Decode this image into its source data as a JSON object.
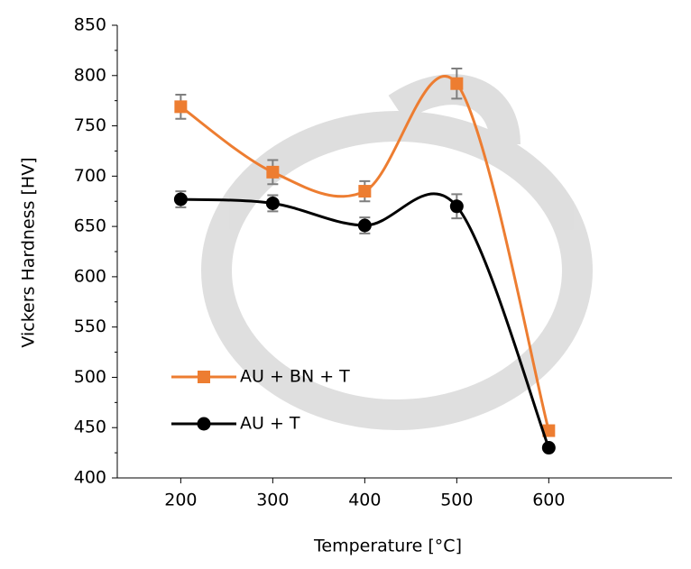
{
  "chart_data": {
    "type": "line",
    "smooth": true,
    "x_label": "Temperature [°C]",
    "y_label": "Vickers Hardness [HV]",
    "x": [
      200,
      300,
      400,
      500,
      600
    ],
    "xlim": [
      131,
      734
    ],
    "xticks": [
      200,
      300,
      400,
      500,
      600
    ],
    "ylim": [
      400,
      850
    ],
    "yticks": [
      400,
      450,
      500,
      550,
      600,
      650,
      700,
      750,
      800,
      850
    ],
    "minor_yticks": true,
    "grid": false,
    "legend": "lower left",
    "error_color": "#7f7f7f",
    "series": [
      {
        "name": "AU + BN + T",
        "color": "#ed7d31",
        "marker": "square",
        "values": [
          769,
          704,
          685,
          792,
          447
        ],
        "errors": [
          12,
          12,
          10,
          15,
          3
        ]
      },
      {
        "name": "AU + T",
        "color": "#000000",
        "marker": "circle",
        "values": [
          677,
          673,
          651,
          670,
          430
        ],
        "errors": [
          8,
          8,
          8,
          12,
          3
        ]
      }
    ]
  }
}
